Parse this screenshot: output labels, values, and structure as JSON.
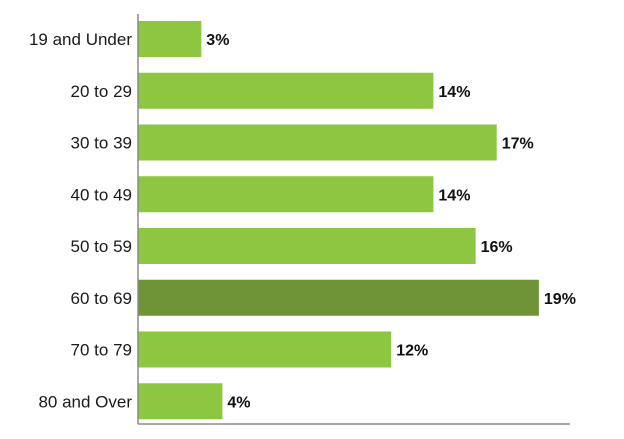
{
  "chart_data": {
    "type": "bar",
    "orientation": "horizontal",
    "categories": [
      "19 and Under",
      "20 to 29",
      "30 to 39",
      "40 to 49",
      "50 to 59",
      "60 to 69",
      "70 to 79",
      "80 and Over"
    ],
    "values": [
      3,
      14,
      17,
      14,
      16,
      19,
      12,
      4
    ],
    "value_labels": [
      "3%",
      "14%",
      "17%",
      "14%",
      "16%",
      "19%",
      "12%",
      "4%"
    ],
    "unit": "%",
    "xlim": [
      0,
      20
    ],
    "grid": false,
    "legend": "none",
    "highlight_index": 5
  },
  "colors": {
    "bar": "#8dc641",
    "highlight_bar": "#6f9437",
    "axis": "#8c8c8c"
  }
}
